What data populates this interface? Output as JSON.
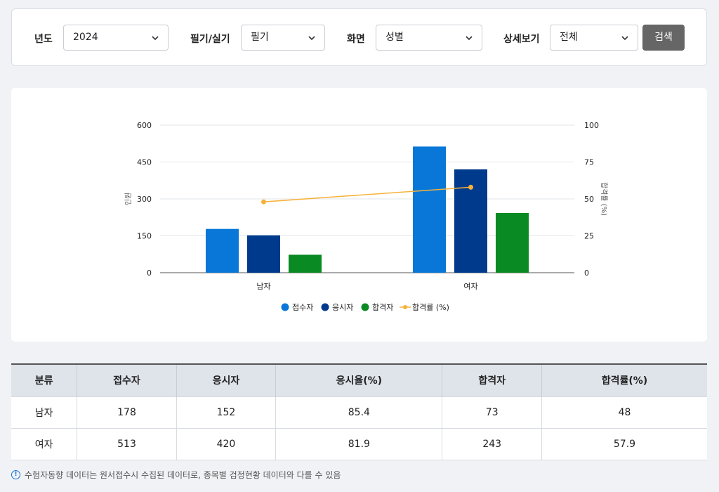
{
  "filters": {
    "year": {
      "label": "년도",
      "value": "2024"
    },
    "exam_type": {
      "label": "필기/실기",
      "value": "필기"
    },
    "view": {
      "label": "화면",
      "value": "성별"
    },
    "detail": {
      "label": "상세보기",
      "value": "전체"
    },
    "search_label": "검색"
  },
  "chart_data": {
    "type": "bar",
    "categories": [
      "남자",
      "여자"
    ],
    "series": [
      {
        "name": "접수자",
        "values": [
          178,
          513
        ],
        "color": "#0877d8",
        "axis": "left",
        "kind": "bar"
      },
      {
        "name": "응시자",
        "values": [
          152,
          420
        ],
        "color": "#003a8c",
        "axis": "left",
        "kind": "bar"
      },
      {
        "name": "합격자",
        "values": [
          73,
          243
        ],
        "color": "#098a23",
        "axis": "left",
        "kind": "bar"
      },
      {
        "name": "합격률 (%)",
        "values": [
          48,
          57.9
        ],
        "color": "#f7b23b",
        "axis": "right",
        "kind": "line"
      }
    ],
    "ylabel": "인원",
    "y2label": "합격률 (%)",
    "ylim": [
      0,
      600
    ],
    "y2lim": [
      0,
      100
    ],
    "yticks": [
      0,
      150,
      300,
      450,
      600
    ],
    "y2ticks": [
      0,
      25,
      50,
      75,
      100
    ],
    "grid": true,
    "legend": "bottom"
  },
  "table": {
    "headers": [
      "분류",
      "접수자",
      "응시자",
      "응시율(%)",
      "합격자",
      "합격률(%)"
    ],
    "rows": [
      [
        "남자",
        "178",
        "152",
        "85.4",
        "73",
        "48"
      ],
      [
        "여자",
        "513",
        "420",
        "81.9",
        "243",
        "57.9"
      ]
    ]
  },
  "note": "수험자동향 데이터는 원서접수시 수집된 데이터로, 종목별 검정현황 데이터와 다를 수 있음",
  "colors": {
    "accent": "#0877d8",
    "button": "#666666"
  }
}
